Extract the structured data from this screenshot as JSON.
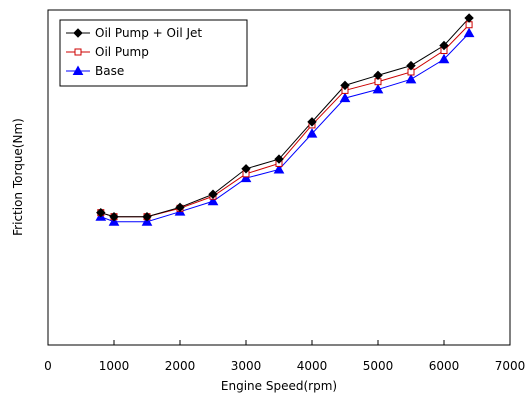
{
  "chart_data": {
    "type": "line",
    "title": "",
    "xlabel": "Engine Speed(rpm)",
    "ylabel": "Friction Torque(Nm)",
    "xlim": [
      0,
      7000
    ],
    "x_ticks": [
      0,
      1000,
      2000,
      3000,
      4000,
      5000,
      6000,
      7000
    ],
    "ylim": [
      0,
      100
    ],
    "y_tick_labels_shown": false,
    "grid": false,
    "legend_position": "top-left",
    "x": [
      800,
      1000,
      1500,
      2000,
      2500,
      3000,
      3500,
      4000,
      4500,
      5000,
      5500,
      6000,
      6380
    ],
    "series": [
      {
        "name": "Oil Pump + Oil Jet",
        "color": "#000000",
        "marker": "diamond-filled",
        "values": [
          39.5,
          38.3,
          38.3,
          41.1,
          45.0,
          52.6,
          55.5,
          66.6,
          77.5,
          80.5,
          83.4,
          89.4,
          97.6
        ]
      },
      {
        "name": "Oil Pump",
        "color": "#cc0000",
        "marker": "square-open",
        "values": [
          39.5,
          38.3,
          38.3,
          40.8,
          44.4,
          51.1,
          54.2,
          65.7,
          76.0,
          78.6,
          81.5,
          87.9,
          95.6
        ]
      },
      {
        "name": "Base",
        "color": "#0000ff",
        "marker": "triangle-filled",
        "values": [
          38.3,
          36.8,
          36.8,
          39.8,
          42.9,
          49.8,
          52.4,
          63.1,
          73.7,
          76.3,
          79.3,
          85.3,
          93.1
        ]
      }
    ]
  }
}
